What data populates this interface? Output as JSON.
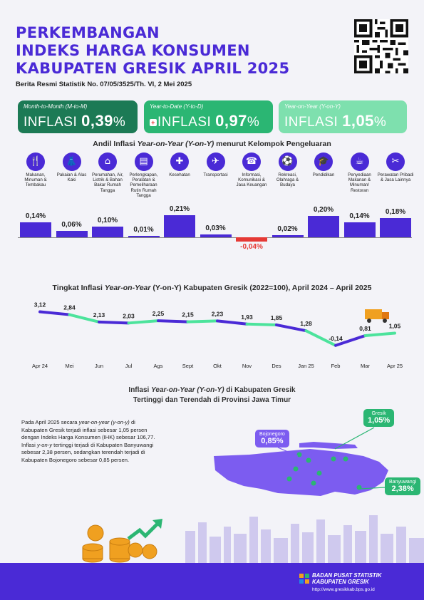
{
  "header": {
    "title_lines": [
      "PERKEMBANGAN",
      "INDEKS HARGA KONSUMEN",
      "KABUPATEN GRESIK APRIL 2025"
    ],
    "subtitle": "Berita Resmi Statistik No. 07/05/3525/Th. VI, 2 Mei 2025"
  },
  "cards": [
    {
      "label": "Month-to-Month (M-to-M)",
      "word": "INFLASI",
      "value": "0,39",
      "unit": "%"
    },
    {
      "label": "Year-to-Date (Y-to-D)",
      "word": "INFLASI",
      "value": "0,97",
      "unit": "%"
    },
    {
      "label": "Year-on-Year (Y-on-Y)",
      "word": "INFLASI",
      "value": "1,05",
      "unit": "%"
    }
  ],
  "andil": {
    "title_pre": "Andil Inflasi ",
    "title_em": "Year-on-Year (Y-on-Y)",
    "title_post": " menurut Kelompok Pengeluaran",
    "categories": [
      {
        "label": "Makanan, Minuman & Tembakau",
        "icon": "food-icon",
        "glyph": "🍴"
      },
      {
        "label": "Pakaian & Alas Kaki",
        "icon": "clothing-icon",
        "glyph": "👗"
      },
      {
        "label": "Perumahan, Air, Listrik & Bahan Bakar Rumah Tangga",
        "icon": "house-icon",
        "glyph": "⌂"
      },
      {
        "label": "Perlengkapan, Peralatan & Pemeliharaan Rutin Rumah Tangga",
        "icon": "appliance-icon",
        "glyph": "▤"
      },
      {
        "label": "Kesehatan",
        "icon": "health-icon",
        "glyph": "✚"
      },
      {
        "label": "Transportasi",
        "icon": "transport-icon",
        "glyph": "✈"
      },
      {
        "label": "Informasi, Komunikasi & Jasa Keuangan",
        "icon": "communication-icon",
        "glyph": "☎"
      },
      {
        "label": "Rekreasi, Olahraga & Budaya",
        "icon": "recreation-icon",
        "glyph": "⚽"
      },
      {
        "label": "Pendidikan",
        "icon": "education-icon",
        "glyph": "🎓"
      },
      {
        "label": "Penyediaan Makanan & Minuman/ Restoran",
        "icon": "restaurant-icon",
        "glyph": "☕"
      },
      {
        "label": "Perawatan Pribadi & Jasa Lainnya",
        "icon": "personal-care-icon",
        "glyph": "✂"
      }
    ]
  },
  "chart_data": [
    {
      "type": "bar",
      "categories": [
        "Makanan, Minuman & Tembakau",
        "Pakaian & Alas Kaki",
        "Perumahan, Air, Listrik & Bahan Bakar Rumah Tangga",
        "Perlengkapan, Peralatan & Pemeliharaan Rutin Rumah Tangga",
        "Kesehatan",
        "Transportasi",
        "Informasi, Komunikasi & Jasa Keuangan",
        "Rekreasi, Olahraga & Budaya",
        "Pendidikan",
        "Penyediaan Makanan & Minuman/ Restoran",
        "Perawatan Pribadi & Jasa Lainnya"
      ],
      "values": [
        0.14,
        0.06,
        0.1,
        0.01,
        0.21,
        0.03,
        -0.04,
        0.02,
        0.2,
        0.14,
        0.18
      ],
      "value_labels": [
        "0,14%",
        "0,06%",
        "0,10%",
        "0,01%",
        "0,21%",
        "0,03%",
        "-0,04%",
        "0,02%",
        "0,20%",
        "0,14%",
        "0,18%"
      ],
      "ylim": [
        -0.05,
        0.25
      ]
    },
    {
      "type": "line",
      "title_pre": "Tingkat Inflasi ",
      "title_em": "Year-on-Year",
      "title_post": " (Y-on-Y) Kabupaten Gresik (2022=100), April 2024 – April 2025",
      "x": [
        "Apr 24",
        "Mei",
        "Jun",
        "Jul",
        "Ags",
        "Sept",
        "Okt",
        "Nov",
        "Des",
        "Jan 25",
        "Feb",
        "Mar",
        "Apr 25"
      ],
      "values": [
        3.12,
        2.84,
        2.13,
        2.03,
        2.25,
        2.15,
        2.23,
        1.93,
        1.85,
        1.28,
        -0.14,
        0.81,
        1.05
      ],
      "value_labels": [
        "3,12",
        "2,84",
        "2,13",
        "2,03",
        "2,25",
        "2,15",
        "2,23",
        "1,93",
        "1,85",
        "1,28",
        "-0,14",
        "0,81",
        "1,05"
      ],
      "ylim": [
        -0.5,
        3.5
      ],
      "colors": [
        "#4a2ad6",
        "#4ce39c"
      ]
    }
  ],
  "map_section": {
    "title_l1_pre": "Inflasi ",
    "title_l1_em": "Year-on-Year (Y-on-Y)",
    "title_l1_post": " di Kabupaten Gresik",
    "title_l2": "Tertinggi dan Terendah di Provinsi Jawa Timur",
    "paragraph_parts": [
      "Pada April 2025 secara ",
      "year-on-year (y-on-y)",
      " di Kabupaten Gresik terjadi inflasi sebesar 1,05 persen dengan Indeks Harga Konsumen (IHK) sebesar 106,77. Inflasi ",
      "y-on-y",
      " tertinggi terjadi di Kabupaten Banyuwangi sebesar 2,38 persen, sedangkan terendah terjadi di Kabupaten Bojonegoro sebesar 0,85 persen."
    ],
    "callouts": [
      {
        "name": "Bojonegoro",
        "value": "0,85%"
      },
      {
        "name": "Gresik",
        "value": "1,05%"
      },
      {
        "name": "Banyuwangi",
        "value": "2,38%"
      }
    ]
  },
  "footer": {
    "line1": "BADAN PUSAT STATISTIK",
    "line2": "KABUPATEN GRESIK",
    "url": "http://www.gresikkab.bps.go.id"
  },
  "colors": {
    "primary": "#4a2ad6",
    "green_dark": "#1c7a55",
    "green": "#2bb673",
    "green_light": "#7ee0ae",
    "negative": "#e53935"
  }
}
